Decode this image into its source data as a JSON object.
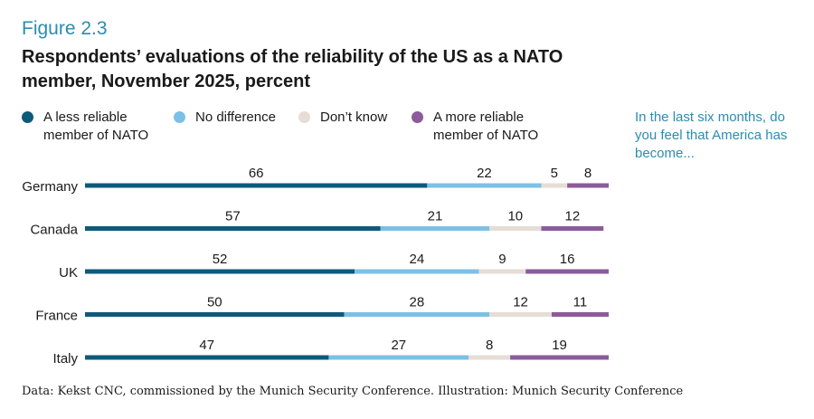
{
  "figure_label": "Figure 2.3",
  "title": "Respondents’ evaluations of the reliability of the US as a NATO member, November 2025, percent",
  "question": "In the last six months, do you feel that America has become...",
  "source": "Data: Kekst CNC, commissioned by the Munich Security Conference. Illustration: Munich Security Conference",
  "chart_data": {
    "type": "bar",
    "orientation": "horizontal-stacked",
    "title": "Respondents’ evaluations of the reliability of the US as a NATO member, November 2025, percent",
    "categories": [
      "Germany",
      "Canada",
      "UK",
      "France",
      "Italy"
    ],
    "series": [
      {
        "name": "A less reliable member of NATO",
        "color": "#0d5a7a",
        "values": [
          66,
          57,
          52,
          50,
          47
        ]
      },
      {
        "name": "No difference",
        "color": "#7cc0e6",
        "values": [
          22,
          21,
          24,
          28,
          27
        ]
      },
      {
        "name": "Don’t know",
        "color": "#e5ddd6",
        "values": [
          5,
          10,
          9,
          12,
          8
        ]
      },
      {
        "name": "A more reliable member of NATO",
        "color": "#8b5b9a",
        "values": [
          8,
          12,
          16,
          11,
          19
        ]
      }
    ],
    "xlim": [
      0,
      101
    ],
    "legend": "top-left"
  }
}
